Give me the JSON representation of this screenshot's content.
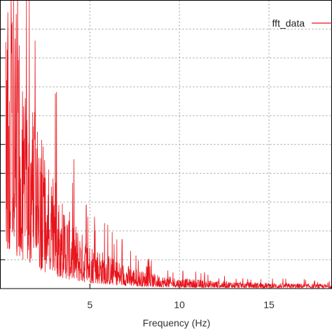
{
  "chart_data": {
    "type": "line",
    "title": "",
    "xlabel": "Frequency (Hz)",
    "ylabel": "",
    "xlim": [
      0,
      18.5
    ],
    "ylim": [
      0,
      10
    ],
    "x_ticks": [
      5,
      10,
      15
    ],
    "y_ticks": [
      1,
      2,
      3,
      4,
      5,
      6,
      7,
      8,
      9,
      10
    ],
    "grid": true,
    "legend_position": "top-right",
    "series": [
      {
        "name": "fft_data",
        "color": "#e8141c",
        "envelope": [
          [
            0.3,
            10.5
          ],
          [
            0.6,
            10.5
          ],
          [
            1.0,
            9.2
          ],
          [
            1.5,
            7.4
          ],
          [
            2.0,
            5.9
          ],
          [
            2.5,
            4.7
          ],
          [
            3.0,
            3.8
          ],
          [
            3.5,
            3.1
          ],
          [
            4.0,
            2.5
          ],
          [
            4.5,
            2.0
          ],
          [
            5.0,
            1.65
          ],
          [
            6.0,
            1.2
          ],
          [
            7.0,
            0.85
          ],
          [
            8.0,
            0.6
          ],
          [
            9.0,
            0.45
          ],
          [
            10.0,
            0.36
          ],
          [
            12.0,
            0.27
          ],
          [
            15.0,
            0.2
          ],
          [
            18.5,
            0.15
          ]
        ],
        "floor": 0.02
      }
    ]
  }
}
